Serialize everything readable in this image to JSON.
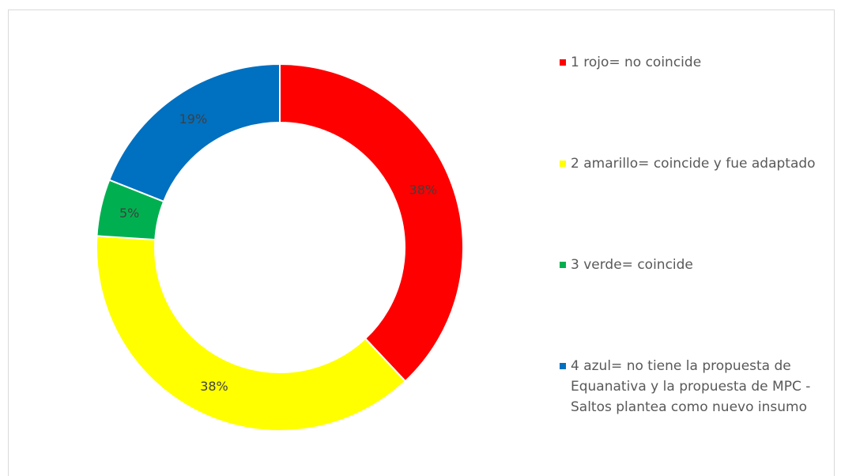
{
  "chart_data": {
    "type": "donut",
    "categories": [
      "1 rojo= no coincide",
      "2 amarillo= coincide y fue adaptado",
      "3 verde= coincide",
      "4 azul= no tiene la propuesta de Equanativa y la propuesta de MPC - Saltos plantea como nuevo insumo"
    ],
    "values": [
      38,
      38,
      5,
      19
    ],
    "value_labels": [
      "38%",
      "38%",
      "5%",
      "19%"
    ],
    "colors": [
      "#ff0000",
      "#ffff00",
      "#00b050",
      "#0070c0"
    ],
    "legend": "right"
  }
}
